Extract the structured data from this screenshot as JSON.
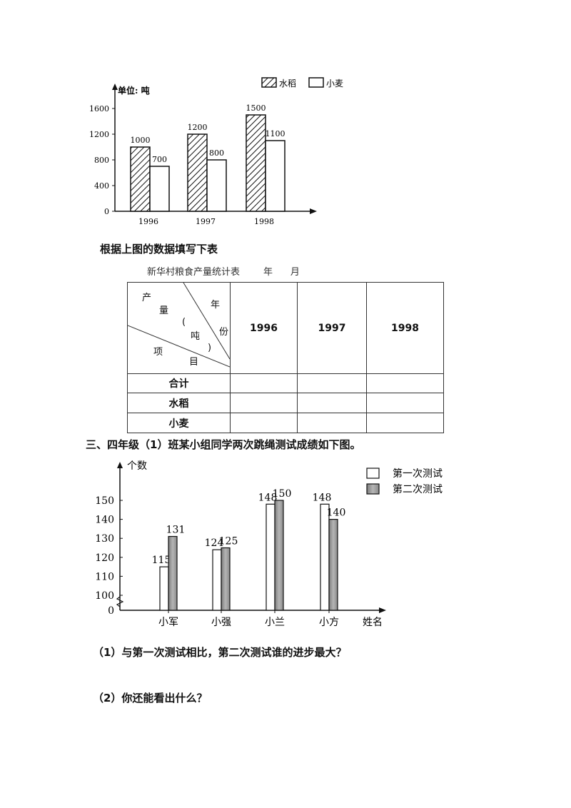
{
  "chart_data": [
    {
      "type": "bar",
      "unit_label": "单位: 吨",
      "categories": [
        "1996",
        "1997",
        "1998"
      ],
      "series": [
        {
          "name": "水稻",
          "values": [
            1000,
            1200,
            1500
          ],
          "fill": "hatched"
        },
        {
          "name": "小麦",
          "values": [
            700,
            800,
            1100
          ],
          "fill": "white"
        }
      ],
      "ylim": [
        0,
        1600
      ],
      "yticks": [
        "0",
        "400",
        "800",
        "1200",
        "1600"
      ],
      "data_labels": true,
      "legend_position": "top-right",
      "grid": false
    },
    {
      "type": "bar",
      "ylabel": "个数",
      "xlabel": "姓名",
      "categories": [
        "小军",
        "小强",
        "小兰",
        "小方"
      ],
      "series": [
        {
          "name": "第一次测试",
          "values": [
            115,
            124,
            148,
            148
          ],
          "fill": "white"
        },
        {
          "name": "第二次测试",
          "values": [
            131,
            125,
            150,
            140
          ],
          "fill": "gray"
        }
      ],
      "ylim": [
        100,
        150
      ],
      "axis_break": true,
      "yticks": [
        "0",
        "100",
        "110",
        "120",
        "130",
        "140",
        "150"
      ],
      "data_labels": true,
      "legend_position": "top-right",
      "grid": false
    }
  ],
  "instruction": "根据上图的数据填写下表",
  "table": {
    "caption": "新华村粮食产量统计表        年      月",
    "header_diag": {
      "chan": "产",
      "liang": "量",
      "paren_l": "(",
      "dun": "吨",
      "paren_r": ")",
      "xiang": "项",
      "mu": "目",
      "nian": "年",
      "fen": "份"
    },
    "years": [
      "1996",
      "1997",
      "1998"
    ],
    "rows": [
      "合计",
      "水稻",
      "小麦"
    ]
  },
  "section3": "三、四年级（1）班某小组同学两次跳绳测试成绩如下图。",
  "q1": "（1）与第一次测试相比，第二次测试谁的进步最大？",
  "q2": "（2）你还能看出什么？",
  "colors": {
    "ink": "#111111",
    "gray_bar": "#9a9a9a"
  }
}
